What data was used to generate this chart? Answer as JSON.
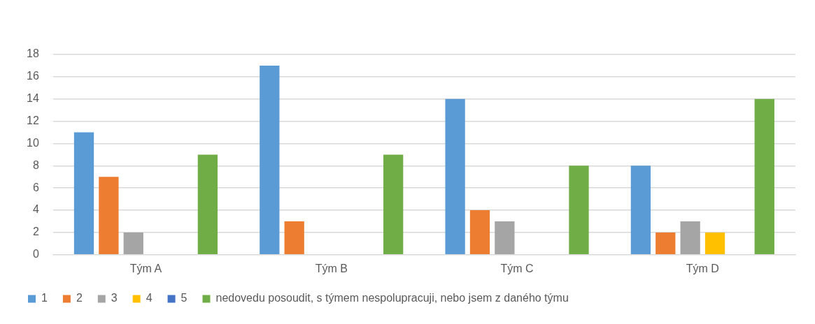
{
  "chart_data": {
    "type": "bar",
    "categories": [
      "Tým A",
      "Tým B",
      "Tým C",
      "Tým D"
    ],
    "series": [
      {
        "name": "1",
        "color": "#5b9bd5",
        "values": [
          11,
          17,
          14,
          8
        ]
      },
      {
        "name": "2",
        "color": "#ed7d31",
        "values": [
          7,
          3,
          4,
          2
        ]
      },
      {
        "name": "3",
        "color": "#a5a5a5",
        "values": [
          2,
          0,
          3,
          3
        ]
      },
      {
        "name": "4",
        "color": "#ffc000",
        "values": [
          0,
          0,
          0,
          2
        ]
      },
      {
        "name": "5",
        "color": "#4472c4",
        "values": [
          0,
          0,
          0,
          0
        ]
      },
      {
        "name": "nedovedu posoudit, s týmem nespolupracuji, nebo jsem z daného týmu",
        "color": "#70ad47",
        "values": [
          9,
          9,
          8,
          14
        ]
      }
    ],
    "ylim": [
      0,
      18
    ],
    "yticks": [
      0,
      2,
      4,
      6,
      8,
      10,
      12,
      14,
      16,
      18
    ],
    "grid": "y",
    "legend": "bottom"
  }
}
